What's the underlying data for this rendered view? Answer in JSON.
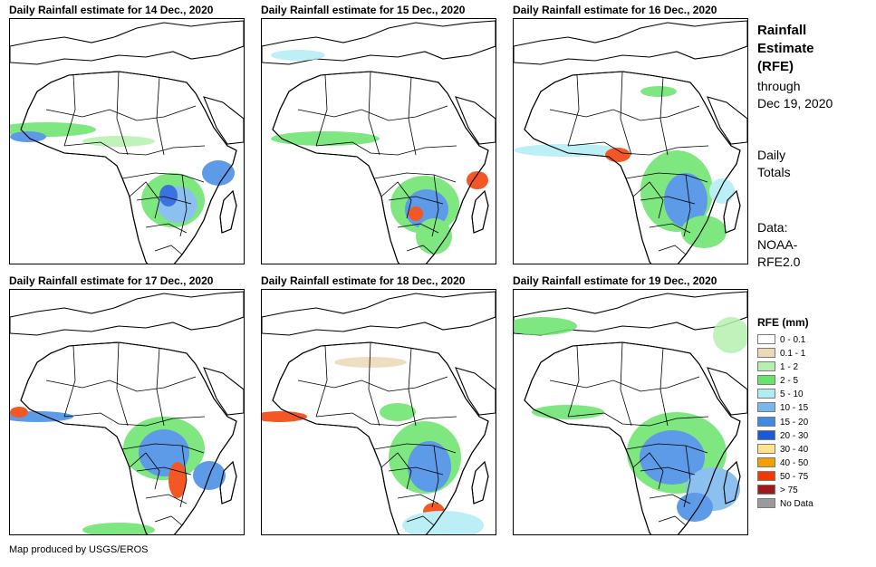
{
  "panels": [
    {
      "title": "Daily Rainfall estimate for 14 Dec., 2020",
      "date": "14 Dec."
    },
    {
      "title": "Daily Rainfall estimate for 15 Dec., 2020",
      "date": "15 Dec."
    },
    {
      "title": "Daily Rainfall estimate for 16 Dec., 2020",
      "date": "16 Dec."
    },
    {
      "title": "Daily Rainfall estimate for 17 Dec., 2020",
      "date": "17 Dec."
    },
    {
      "title": "Daily Rainfall estimate for 18 Dec., 2020",
      "date": "18 Dec."
    },
    {
      "title": "Daily Rainfall estimate for 19 Dec., 2020",
      "date": "19 Dec."
    }
  ],
  "side": {
    "title_lines": [
      "Rainfall",
      "Estimate",
      "(RFE)"
    ],
    "through_lines": [
      "through",
      "Dec 19, 2020"
    ],
    "totals_lines": [
      "Daily",
      "Totals"
    ],
    "data_lines": [
      "Data:",
      "NOAA-",
      "RFE2.0"
    ]
  },
  "legend": {
    "title": "RFE (mm)",
    "items": [
      {
        "label": "0 - 0.1",
        "color": "#ffffff"
      },
      {
        "label": "0.1 - 1",
        "color": "#ecd9b6"
      },
      {
        "label": "1 - 2",
        "color": "#b6f0b0"
      },
      {
        "label": "2 - 5",
        "color": "#69e36b"
      },
      {
        "label": "5 - 10",
        "color": "#b0ecf4"
      },
      {
        "label": "10 - 15",
        "color": "#79b6ec"
      },
      {
        "label": "15 - 20",
        "color": "#4189e3"
      },
      {
        "label": "20 - 30",
        "color": "#1a5ad9"
      },
      {
        "label": "30 - 40",
        "color": "#fbe48c"
      },
      {
        "label": "40 - 50",
        "color": "#f4a000"
      },
      {
        "label": "50 - 75",
        "color": "#f23a00"
      },
      {
        "label": "> 75",
        "color": "#a01818"
      },
      {
        "label": "No Data",
        "color": "#9a9a9a"
      }
    ]
  },
  "footer": "Map produced by USGS/EROS"
}
